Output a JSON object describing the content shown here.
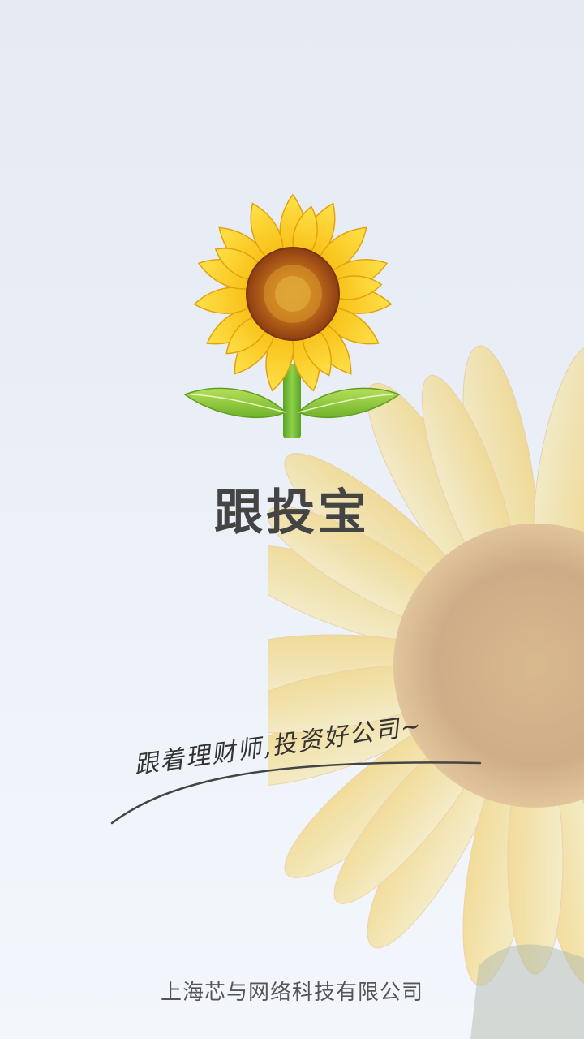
{
  "app": {
    "name": "跟投宝"
  },
  "slogan": {
    "text": "跟着理财师,投资好公司~"
  },
  "footer": {
    "company": "上海芯与网络科技有限公司"
  },
  "icons": {
    "logo": "sunflower-logo-icon",
    "background": "sunflower-background-image"
  },
  "colors": {
    "petal": "#f7c818",
    "petal_dark": "#e8a90a",
    "center": "#a8521a",
    "leaf": "#8cc63f",
    "stem": "#6fba2c",
    "title_text": "#444444",
    "background": "#e9eef6"
  }
}
